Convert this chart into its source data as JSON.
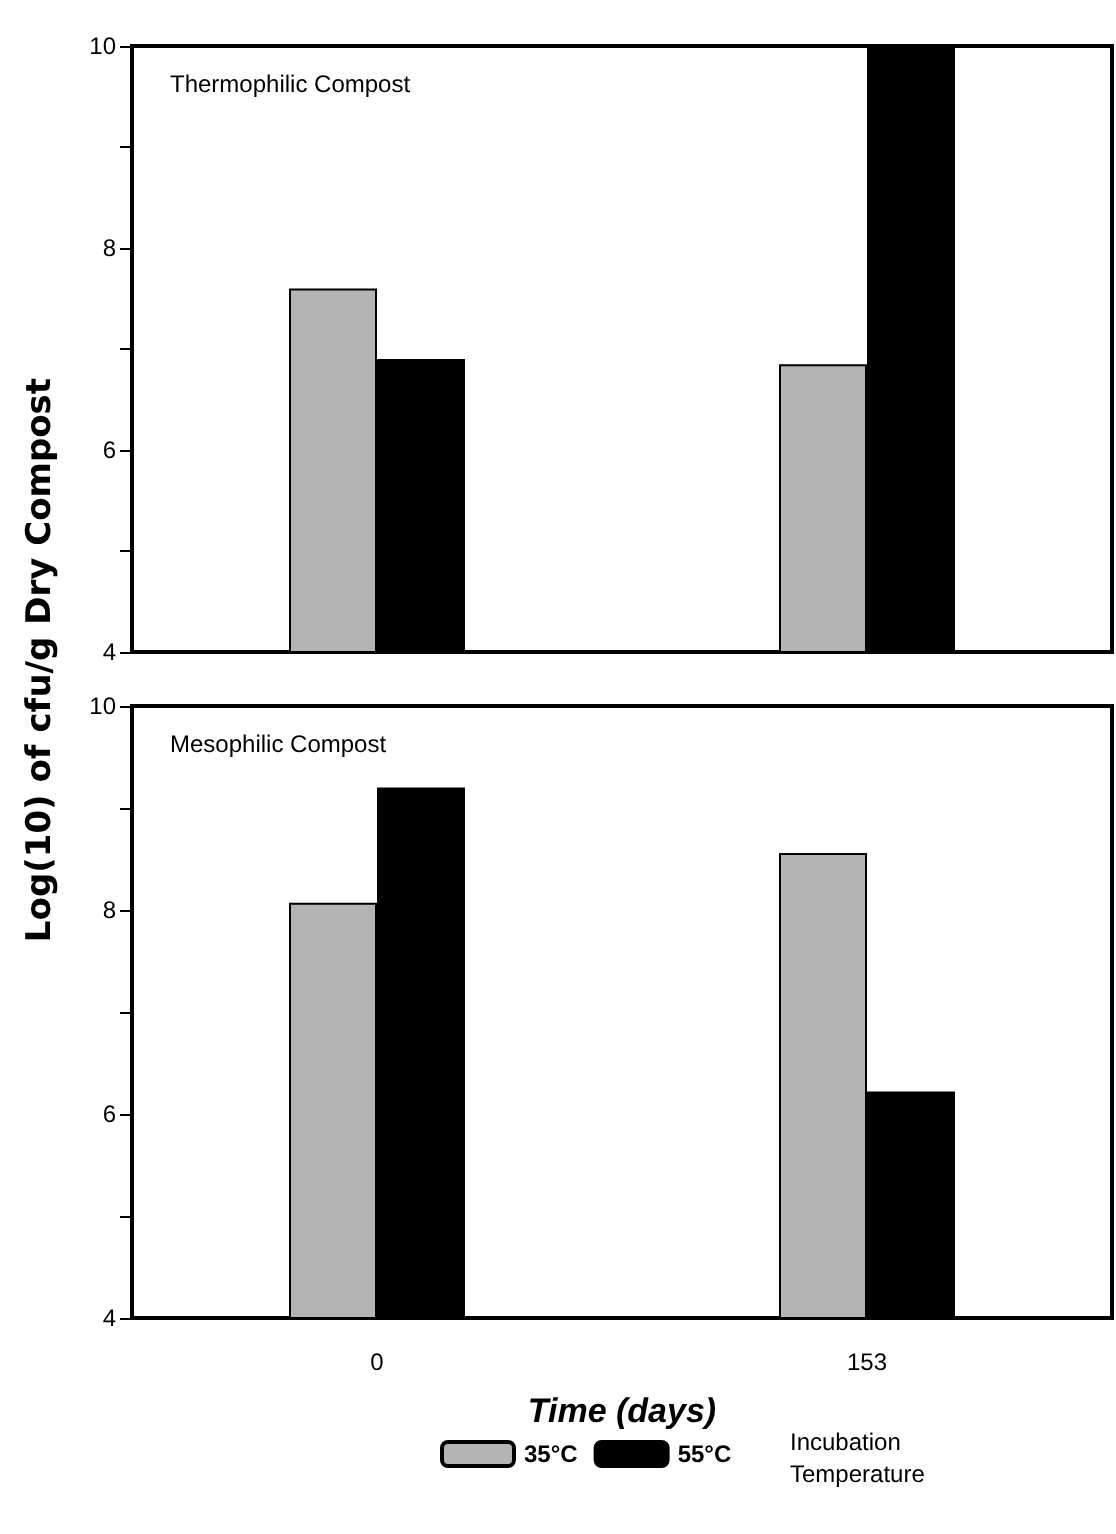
{
  "chart_data": [
    {
      "type": "bar",
      "title": "Thermophilic Compost",
      "ylabel": "Log(10) of cfu/g Dry Compost",
      "categories": [
        "0",
        "153"
      ],
      "series": [
        {
          "color": "#b4b4b4",
          "values": [
            7.6,
            6.85
          ]
        },
        {
          "color": "#000000",
          "values": [
            6.9,
            10
          ]
        }
      ],
      "ylim": [
        4,
        10
      ],
      "yticks": [
        4,
        {
          "value": 5,
          "label": null
        },
        6,
        {
          "value": 7,
          "label": null
        },
        8,
        {
          "value": 9,
          "label": null
        },
        10
      ],
      "tick_labels": "y",
      "grid": false,
      "legend": false
    },
    {
      "type": "bar",
      "title": "Mesophilic Compost",
      "xlabel": "Time (days)",
      "legend_title": "Incubation Temperature",
      "categories": [
        "0",
        "153"
      ],
      "series": [
        {
          "name": "35°C",
          "color": "#b4b4b4",
          "values": [
            8.07,
            8.56
          ]
        },
        {
          "name": "55°C",
          "color": "#000000",
          "values": [
            9.2,
            6.22
          ]
        }
      ],
      "ylim": [
        4,
        10
      ],
      "yticks": [
        4,
        {
          "value": 5,
          "label": null
        },
        6,
        {
          "value": 7,
          "label": null
        },
        8,
        {
          "value": 9,
          "label": null
        },
        10
      ],
      "grid": false,
      "legend": "bottom"
    }
  ]
}
